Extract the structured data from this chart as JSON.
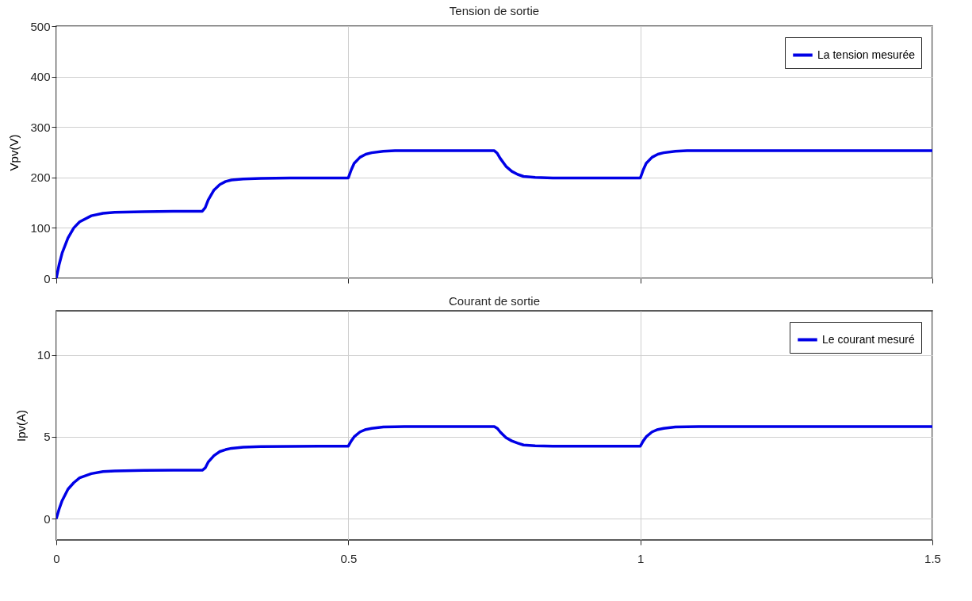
{
  "chart_data": [
    {
      "type": "line",
      "title": "Tension de sortie",
      "ylabel": "Vpv(V)",
      "xlim": [
        0,
        1.5
      ],
      "xticks": [
        0,
        0.5,
        1,
        1.5
      ],
      "ylim": [
        0,
        500
      ],
      "yticks": [
        0,
        100,
        200,
        300,
        400,
        500
      ],
      "grid": true,
      "legend": "top right",
      "tick_labels": "y",
      "x": [
        0,
        0.005,
        0.01,
        0.02,
        0.03,
        0.04,
        0.06,
        0.08,
        0.1,
        0.15,
        0.2,
        0.25,
        0.255,
        0.26,
        0.27,
        0.28,
        0.29,
        0.3,
        0.32,
        0.35,
        0.4,
        0.45,
        0.5,
        0.505,
        0.51,
        0.52,
        0.53,
        0.54,
        0.56,
        0.58,
        0.6,
        0.65,
        0.7,
        0.75,
        0.755,
        0.76,
        0.77,
        0.78,
        0.79,
        0.8,
        0.82,
        0.85,
        0.9,
        1.0,
        1.005,
        1.01,
        1.02,
        1.03,
        1.04,
        1.06,
        1.08,
        1.1,
        1.3,
        1.5
      ],
      "series": [
        {
          "name": "La tension mesurée",
          "color": "#0000e6",
          "values": [
            0,
            28,
            50,
            80,
            100,
            112,
            124,
            129,
            131,
            132,
            133,
            133,
            140,
            155,
            175,
            186,
            192,
            195,
            197,
            198,
            199,
            199,
            199,
            215,
            228,
            240,
            246,
            249,
            252,
            253,
            253,
            253,
            253,
            253,
            248,
            238,
            222,
            212,
            206,
            202,
            200,
            199,
            199,
            199,
            215,
            228,
            240,
            246,
            249,
            252,
            253,
            253,
            253,
            253
          ]
        }
      ]
    },
    {
      "type": "line",
      "title": "Courant de sortie",
      "ylabel": "Ipv(A)",
      "xlim": [
        0,
        1.5
      ],
      "xticks": [
        0,
        0.5,
        1,
        1.5
      ],
      "ylim": [
        -1.3,
        12.7
      ],
      "yticks": [
        0,
        5,
        10
      ],
      "grid": true,
      "legend": "top right",
      "x": [
        0,
        0.005,
        0.01,
        0.02,
        0.03,
        0.04,
        0.06,
        0.08,
        0.1,
        0.15,
        0.2,
        0.25,
        0.255,
        0.26,
        0.27,
        0.28,
        0.29,
        0.3,
        0.32,
        0.35,
        0.4,
        0.45,
        0.5,
        0.505,
        0.51,
        0.52,
        0.53,
        0.54,
        0.56,
        0.58,
        0.6,
        0.65,
        0.7,
        0.75,
        0.755,
        0.76,
        0.77,
        0.78,
        0.79,
        0.8,
        0.82,
        0.85,
        0.9,
        1.0,
        1.005,
        1.01,
        1.02,
        1.03,
        1.04,
        1.06,
        1.08,
        1.1,
        1.3,
        1.5
      ],
      "series": [
        {
          "name": "Le courant mesuré",
          "color": "#0000e6",
          "values": [
            0,
            0.6,
            1.1,
            1.8,
            2.2,
            2.5,
            2.75,
            2.88,
            2.92,
            2.95,
            2.96,
            2.96,
            3.1,
            3.45,
            3.85,
            4.1,
            4.22,
            4.3,
            4.37,
            4.4,
            4.42,
            4.43,
            4.43,
            4.75,
            5.0,
            5.3,
            5.45,
            5.52,
            5.6,
            5.62,
            5.63,
            5.63,
            5.63,
            5.63,
            5.52,
            5.3,
            4.95,
            4.75,
            4.62,
            4.5,
            4.45,
            4.43,
            4.43,
            4.43,
            4.75,
            5.0,
            5.3,
            5.45,
            5.52,
            5.6,
            5.62,
            5.63,
            5.63,
            5.63
          ]
        }
      ]
    }
  ]
}
